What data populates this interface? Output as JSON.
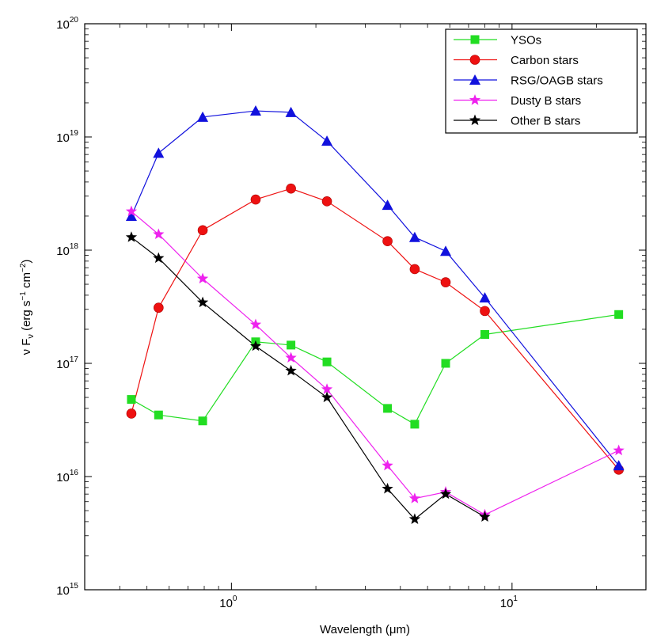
{
  "chart_data": {
    "type": "line",
    "title": "",
    "xlabel": "Wavelength (μm)",
    "ylabel": "ν Fν (erg s⁻¹ cm⁻²)",
    "ylabel_parts": {
      "nu": "ν F",
      "nu_sub": "ν",
      "units_open": " (erg s",
      "sup1": "−1",
      "cm": " cm",
      "sup2": "−2",
      "units_close": ")"
    },
    "xscale": "log",
    "yscale": "log",
    "xlim": [
      0.3,
      30
    ],
    "ylim": [
      1000000000000000.0,
      1e+20
    ],
    "x_ticks": [
      {
        "value": 1,
        "base": "10",
        "exp": "0"
      },
      {
        "value": 10,
        "base": "10",
        "exp": "1"
      }
    ],
    "y_ticks": [
      {
        "value": 1000000000000000.0,
        "base": "10",
        "exp": "15"
      },
      {
        "value": 1e+16,
        "base": "10",
        "exp": "16"
      },
      {
        "value": 1e+17,
        "base": "10",
        "exp": "17"
      },
      {
        "value": 1e+18,
        "base": "10",
        "exp": "18"
      },
      {
        "value": 1e+19,
        "base": "10",
        "exp": "19"
      },
      {
        "value": 1e+20,
        "base": "10",
        "exp": "20"
      }
    ],
    "grid": false,
    "legend_position": "top-right",
    "x": [
      0.44,
      0.55,
      0.79,
      1.22,
      1.63,
      2.19,
      3.6,
      4.5,
      5.8,
      8.0,
      24.0
    ],
    "series": [
      {
        "name": "YSOs",
        "color": "#22dd22",
        "marker": "square",
        "values": [
          4.8e+16,
          3.5e+16,
          3.1e+16,
          1.55e+17,
          1.45e+17,
          1.03e+17,
          4e+16,
          2.9e+16,
          1e+17,
          1.8e+17,
          2.7e+17
        ]
      },
      {
        "name": "Carbon stars",
        "color": "#ee1111",
        "marker": "circle",
        "values": [
          3.6e+16,
          3.1e+17,
          1.5e+18,
          2.8e+18,
          3.5e+18,
          2.7e+18,
          1.2e+18,
          6.8e+17,
          5.2e+17,
          2.9e+17,
          1.15e+16
        ]
      },
      {
        "name": "RSG/OAGB stars",
        "color": "#1111dd",
        "marker": "triangle",
        "values": [
          2e+18,
          7.2e+18,
          1.5e+19,
          1.7e+19,
          1.65e+19,
          9.2e+18,
          2.5e+18,
          1.3e+18,
          9.8e+17,
          3.8e+17,
          1.25e+16
        ]
      },
      {
        "name": "Dusty B stars",
        "color": "#ee22ee",
        "marker": "star",
        "values": [
          2.2e+18,
          1.38e+18,
          5.6e+17,
          2.2e+17,
          1.12e+17,
          5.9e+16,
          1.25e+16,
          6400000000000000.0,
          7300000000000000.0,
          4600000000000000.0,
          1.7e+16
        ]
      },
      {
        "name": "Other B stars",
        "color": "#000000",
        "marker": "star",
        "values": [
          1.3e+18,
          8.5e+17,
          3.45e+17,
          1.42e+17,
          8.6e+16,
          5e+16,
          7800000000000000.0,
          4200000000000000.0,
          7000000000000000.0,
          4400000000000000.0,
          null
        ]
      }
    ]
  }
}
